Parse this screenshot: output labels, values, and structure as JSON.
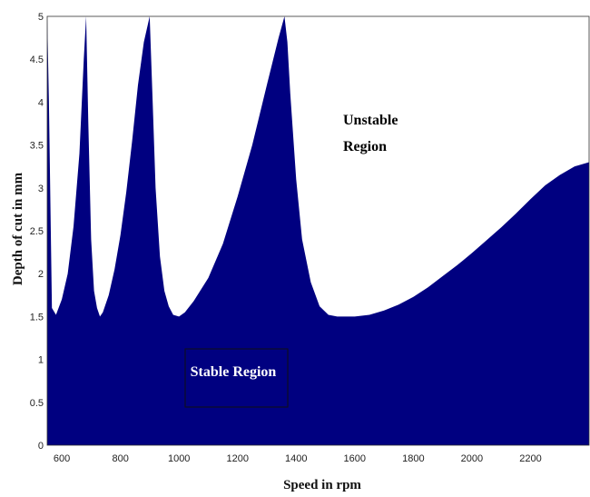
{
  "chart_data": {
    "type": "area",
    "title": "",
    "xlabel": "Speed in rpm",
    "ylabel": "Depth of cut in mm",
    "xlim": [
      550,
      2400
    ],
    "ylim": [
      0,
      5
    ],
    "x_ticks": [
      600,
      800,
      1000,
      1200,
      1400,
      1600,
      1800,
      2000,
      2200
    ],
    "y_ticks": [
      0,
      0.5,
      1,
      1.5,
      2,
      2.5,
      3,
      3.5,
      4,
      4.5,
      5
    ],
    "grid": false,
    "fill_color": "#000080",
    "series": [
      {
        "x": [
          550,
          556,
          566,
          580,
          600,
          620,
          640,
          660,
          675,
          683,
          690,
          700,
          710,
          720,
          730,
          740,
          760,
          780,
          800,
          820,
          840,
          860,
          880,
          900,
          910,
          920,
          935,
          950,
          965,
          980,
          1000,
          1020,
          1050,
          1100,
          1150,
          1200,
          1250,
          1300,
          1340,
          1360,
          1370,
          1380,
          1400,
          1420,
          1450,
          1480,
          1510,
          1540,
          1560,
          1600,
          1650,
          1700,
          1750,
          1800,
          1850,
          1900,
          1950,
          2000,
          2050,
          2100,
          2150,
          2200,
          2250,
          2300,
          2350,
          2400
        ],
        "y": [
          5,
          4.0,
          1.6,
          1.52,
          1.7,
          2.0,
          2.55,
          3.4,
          4.5,
          5,
          3.8,
          2.4,
          1.8,
          1.6,
          1.5,
          1.55,
          1.75,
          2.05,
          2.45,
          2.95,
          3.55,
          4.2,
          4.7,
          5,
          4.0,
          3.0,
          2.2,
          1.8,
          1.62,
          1.52,
          1.5,
          1.55,
          1.68,
          1.95,
          2.35,
          2.9,
          3.5,
          4.2,
          4.75,
          5,
          4.7,
          4.1,
          3.1,
          2.4,
          1.9,
          1.62,
          1.52,
          1.5,
          1.5,
          1.5,
          1.52,
          1.57,
          1.64,
          1.73,
          1.84,
          1.97,
          2.1,
          2.24,
          2.39,
          2.54,
          2.7,
          2.87,
          3.03,
          3.15,
          3.25,
          3.3
        ]
      }
    ],
    "annotations": [
      {
        "text_lines": [
          "Unstable",
          "Region"
        ],
        "color": "#000000"
      },
      {
        "text": "Stable Region",
        "color": "#ffffff"
      }
    ]
  }
}
